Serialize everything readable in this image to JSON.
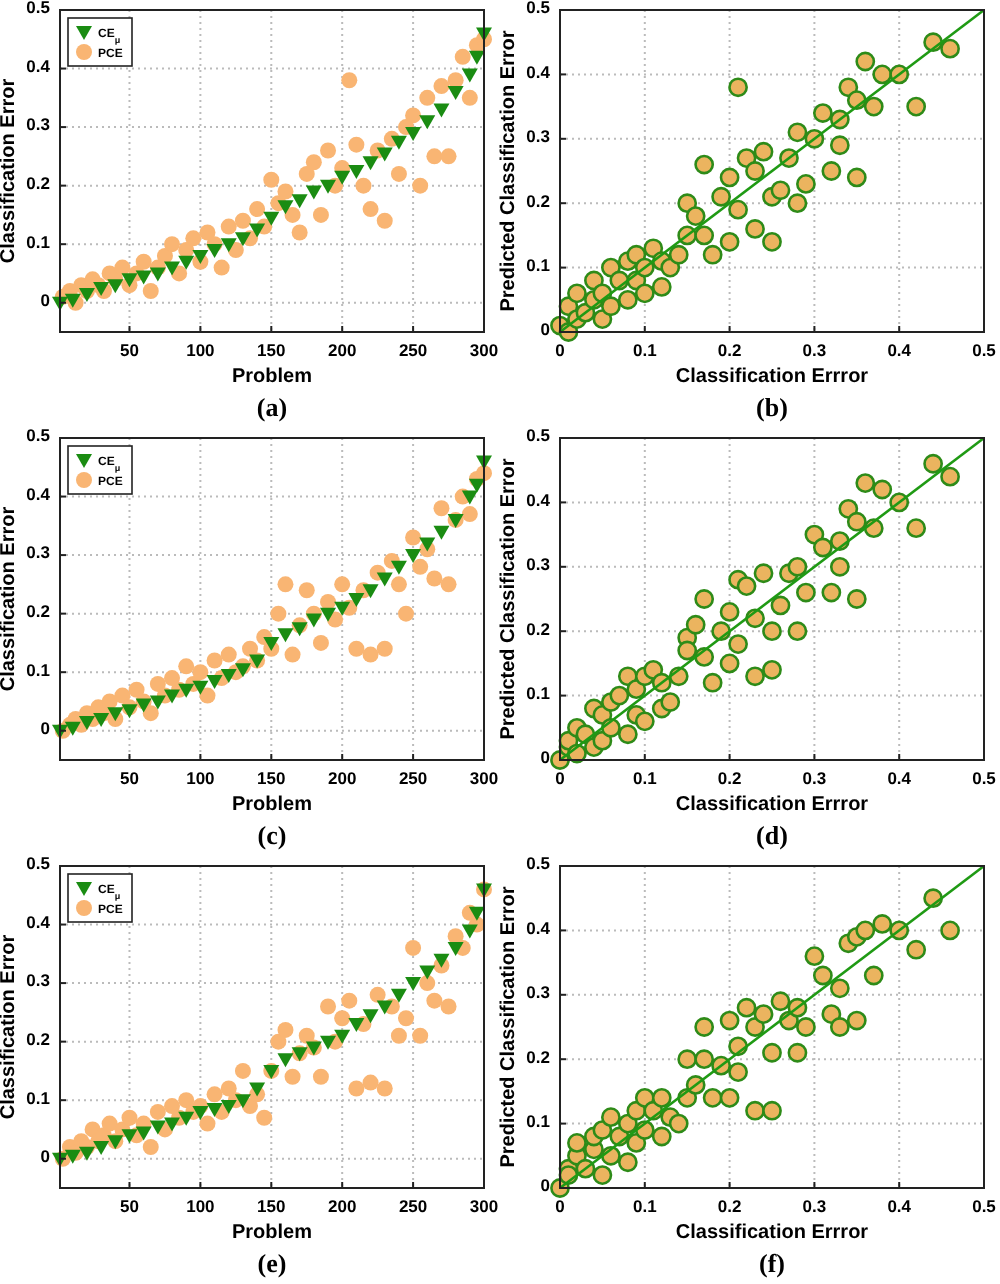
{
  "chart_data": [
    {
      "type": "scatter",
      "xlabel": "Problem",
      "ylabel": "Classification Error",
      "annotations": [
        "(a)"
      ],
      "xlim": [
        1,
        300
      ],
      "ylim": [
        -0.05,
        0.5
      ],
      "xticks": [
        50,
        100,
        150,
        200,
        250,
        300
      ],
      "yticks": [
        0,
        0.1,
        0.2,
        0.3,
        0.4,
        0.5
      ],
      "grid": true,
      "legend": "top left",
      "series": [
        {
          "name": "CE$_{μ}$",
          "color": "#1a8c12",
          "marker": "triangle",
          "x": [
            1,
            10,
            20,
            30,
            40,
            50,
            60,
            70,
            80,
            90,
            100,
            110,
            120,
            130,
            140,
            150,
            160,
            170,
            180,
            190,
            200,
            210,
            220,
            230,
            240,
            250,
            260,
            270,
            280,
            290,
            295,
            300
          ],
          "values": [
            0,
            0.005,
            0.015,
            0.025,
            0.03,
            0.04,
            0.045,
            0.05,
            0.06,
            0.07,
            0.08,
            0.09,
            0.1,
            0.11,
            0.125,
            0.145,
            0.165,
            0.175,
            0.19,
            0.2,
            0.215,
            0.225,
            0.24,
            0.255,
            0.275,
            0.29,
            0.31,
            0.33,
            0.36,
            0.39,
            0.42,
            0.46
          ]
        },
        {
          "name": "PCE",
          "color": "#f9b573",
          "marker": "circle",
          "x": [
            3,
            8,
            12,
            16,
            20,
            24,
            28,
            32,
            36,
            40,
            45,
            50,
            55,
            60,
            65,
            70,
            75,
            80,
            85,
            90,
            95,
            100,
            105,
            110,
            115,
            120,
            125,
            130,
            135,
            140,
            145,
            150,
            155,
            160,
            165,
            170,
            175,
            180,
            185,
            190,
            195,
            200,
            205,
            210,
            215,
            220,
            225,
            230,
            235,
            240,
            245,
            250,
            255,
            260,
            265,
            270,
            275,
            280,
            285,
            290,
            295,
            300
          ],
          "values": [
            0.01,
            0.02,
            0.0,
            0.03,
            0.02,
            0.04,
            0.03,
            0.02,
            0.05,
            0.04,
            0.06,
            0.03,
            0.05,
            0.07,
            0.02,
            0.06,
            0.08,
            0.1,
            0.05,
            0.09,
            0.11,
            0.07,
            0.12,
            0.1,
            0.06,
            0.13,
            0.09,
            0.14,
            0.11,
            0.16,
            0.13,
            0.21,
            0.17,
            0.19,
            0.15,
            0.12,
            0.22,
            0.24,
            0.15,
            0.26,
            0.2,
            0.23,
            0.38,
            0.27,
            0.2,
            0.16,
            0.26,
            0.14,
            0.28,
            0.22,
            0.3,
            0.32,
            0.2,
            0.35,
            0.25,
            0.37,
            0.25,
            0.38,
            0.42,
            0.35,
            0.44,
            0.45
          ]
        }
      ]
    },
    {
      "type": "scatter",
      "xlabel": "Classification Errror",
      "ylabel": "Predicted Classification Error",
      "annotations": [
        "(b)"
      ],
      "xlim": [
        0,
        0.5
      ],
      "ylim": [
        0,
        0.5
      ],
      "xticks": [
        0,
        0.1,
        0.2,
        0.3,
        0.4,
        0.5
      ],
      "yticks": [
        0,
        0.1,
        0.2,
        0.3,
        0.4,
        0.5
      ],
      "grid": true,
      "series": [
        {
          "type": "line",
          "color": "#1f9a14",
          "x": [
            0,
            0.5
          ],
          "values": [
            0,
            0.5
          ]
        },
        {
          "color": "#ebb45f",
          "marker": "circle",
          "x": [
            0.0,
            0.01,
            0.01,
            0.02,
            0.02,
            0.03,
            0.04,
            0.04,
            0.05,
            0.05,
            0.06,
            0.06,
            0.07,
            0.08,
            0.08,
            0.09,
            0.09,
            0.1,
            0.1,
            0.11,
            0.12,
            0.12,
            0.13,
            0.14,
            0.15,
            0.15,
            0.16,
            0.17,
            0.17,
            0.18,
            0.19,
            0.2,
            0.2,
            0.21,
            0.21,
            0.22,
            0.23,
            0.23,
            0.24,
            0.25,
            0.25,
            0.26,
            0.27,
            0.28,
            0.28,
            0.29,
            0.3,
            0.31,
            0.32,
            0.33,
            0.33,
            0.34,
            0.35,
            0.35,
            0.36,
            0.37,
            0.38,
            0.4,
            0.42,
            0.44,
            0.46
          ],
          "values": [
            0.01,
            0.0,
            0.04,
            0.02,
            0.06,
            0.03,
            0.05,
            0.08,
            0.02,
            0.06,
            0.1,
            0.04,
            0.08,
            0.11,
            0.05,
            0.12,
            0.08,
            0.1,
            0.06,
            0.13,
            0.07,
            0.11,
            0.1,
            0.12,
            0.2,
            0.15,
            0.18,
            0.26,
            0.15,
            0.12,
            0.21,
            0.24,
            0.14,
            0.38,
            0.19,
            0.27,
            0.16,
            0.25,
            0.28,
            0.14,
            0.21,
            0.22,
            0.27,
            0.31,
            0.2,
            0.23,
            0.3,
            0.34,
            0.25,
            0.33,
            0.29,
            0.38,
            0.24,
            0.36,
            0.42,
            0.35,
            0.4,
            0.4,
            0.35,
            0.45,
            0.44
          ]
        }
      ]
    },
    {
      "type": "scatter",
      "xlabel": "Problem",
      "ylabel": "Classification Error",
      "annotations": [
        "(c)"
      ],
      "xlim": [
        1,
        300
      ],
      "ylim": [
        -0.05,
        0.5
      ],
      "xticks": [
        50,
        100,
        150,
        200,
        250,
        300
      ],
      "yticks": [
        0,
        0.1,
        0.2,
        0.3,
        0.4,
        0.5
      ],
      "grid": true,
      "legend": "top left",
      "series": [
        {
          "name": "CE$_{μ}$",
          "color": "#1a8c12",
          "marker": "triangle",
          "x": [
            1,
            10,
            20,
            30,
            40,
            50,
            60,
            70,
            80,
            90,
            100,
            110,
            120,
            130,
            140,
            150,
            160,
            170,
            180,
            190,
            200,
            210,
            220,
            230,
            240,
            250,
            260,
            270,
            280,
            290,
            295,
            300
          ],
          "values": [
            0,
            0.005,
            0.015,
            0.02,
            0.03,
            0.035,
            0.045,
            0.05,
            0.06,
            0.07,
            0.075,
            0.085,
            0.095,
            0.105,
            0.12,
            0.15,
            0.165,
            0.175,
            0.19,
            0.2,
            0.21,
            0.225,
            0.24,
            0.26,
            0.28,
            0.3,
            0.32,
            0.34,
            0.36,
            0.4,
            0.42,
            0.46
          ]
        },
        {
          "name": "PCE",
          "color": "#f9b573",
          "marker": "circle",
          "x": [
            3,
            8,
            12,
            16,
            20,
            24,
            28,
            32,
            36,
            40,
            45,
            50,
            55,
            60,
            65,
            70,
            75,
            80,
            85,
            90,
            95,
            100,
            105,
            110,
            115,
            120,
            125,
            130,
            135,
            140,
            145,
            150,
            155,
            160,
            165,
            170,
            175,
            180,
            185,
            190,
            195,
            200,
            205,
            210,
            215,
            220,
            225,
            230,
            235,
            240,
            245,
            250,
            255,
            260,
            265,
            270,
            275,
            280,
            285,
            290,
            295,
            300
          ],
          "values": [
            0.0,
            0.01,
            0.02,
            0.01,
            0.03,
            0.02,
            0.04,
            0.03,
            0.05,
            0.02,
            0.06,
            0.04,
            0.07,
            0.05,
            0.03,
            0.08,
            0.06,
            0.09,
            0.07,
            0.11,
            0.08,
            0.1,
            0.06,
            0.12,
            0.09,
            0.13,
            0.1,
            0.11,
            0.14,
            0.12,
            0.16,
            0.14,
            0.2,
            0.25,
            0.13,
            0.18,
            0.24,
            0.2,
            0.15,
            0.22,
            0.19,
            0.25,
            0.21,
            0.14,
            0.24,
            0.13,
            0.27,
            0.14,
            0.29,
            0.25,
            0.2,
            0.33,
            0.28,
            0.31,
            0.26,
            0.38,
            0.25,
            0.36,
            0.4,
            0.37,
            0.43,
            0.44
          ]
        }
      ]
    },
    {
      "type": "scatter",
      "xlabel": "Classification Errror",
      "ylabel": "Predicted Classification Error",
      "annotations": [
        "(d)"
      ],
      "xlim": [
        0,
        0.5
      ],
      "ylim": [
        0,
        0.5
      ],
      "xticks": [
        0,
        0.1,
        0.2,
        0.3,
        0.4,
        0.5
      ],
      "yticks": [
        0,
        0.1,
        0.2,
        0.3,
        0.4,
        0.5
      ],
      "grid": true,
      "series": [
        {
          "type": "line",
          "color": "#1f9a14",
          "x": [
            0,
            0.5
          ],
          "values": [
            0,
            0.5
          ]
        },
        {
          "color": "#ebb45f",
          "marker": "circle",
          "x": [
            0.0,
            0.01,
            0.01,
            0.02,
            0.02,
            0.03,
            0.04,
            0.04,
            0.05,
            0.05,
            0.06,
            0.06,
            0.07,
            0.08,
            0.08,
            0.09,
            0.09,
            0.1,
            0.1,
            0.11,
            0.12,
            0.12,
            0.13,
            0.14,
            0.15,
            0.15,
            0.16,
            0.17,
            0.17,
            0.18,
            0.19,
            0.2,
            0.2,
            0.21,
            0.21,
            0.22,
            0.23,
            0.23,
            0.24,
            0.25,
            0.25,
            0.26,
            0.27,
            0.28,
            0.28,
            0.29,
            0.3,
            0.31,
            0.32,
            0.33,
            0.33,
            0.34,
            0.35,
            0.35,
            0.36,
            0.37,
            0.38,
            0.4,
            0.42,
            0.44,
            0.46
          ],
          "values": [
            0.0,
            0.02,
            0.03,
            0.01,
            0.05,
            0.04,
            0.02,
            0.08,
            0.03,
            0.07,
            0.09,
            0.05,
            0.1,
            0.13,
            0.04,
            0.11,
            0.07,
            0.13,
            0.06,
            0.14,
            0.08,
            0.12,
            0.09,
            0.13,
            0.19,
            0.17,
            0.21,
            0.25,
            0.16,
            0.12,
            0.2,
            0.23,
            0.15,
            0.28,
            0.18,
            0.27,
            0.13,
            0.22,
            0.29,
            0.14,
            0.2,
            0.24,
            0.29,
            0.3,
            0.2,
            0.26,
            0.35,
            0.33,
            0.26,
            0.34,
            0.3,
            0.39,
            0.25,
            0.37,
            0.43,
            0.36,
            0.42,
            0.4,
            0.36,
            0.46,
            0.44
          ]
        }
      ]
    },
    {
      "type": "scatter",
      "xlabel": "Problem",
      "ylabel": "Classification Error",
      "annotations": [
        "(e)"
      ],
      "xlim": [
        1,
        300
      ],
      "ylim": [
        -0.05,
        0.5
      ],
      "xticks": [
        50,
        100,
        150,
        200,
        250,
        300
      ],
      "yticks": [
        0,
        0.1,
        0.2,
        0.3,
        0.4,
        0.5
      ],
      "grid": true,
      "legend": "top left",
      "series": [
        {
          "name": "CE$_{μ}$",
          "color": "#1a8c12",
          "marker": "triangle",
          "x": [
            1,
            10,
            20,
            30,
            40,
            50,
            60,
            70,
            80,
            90,
            100,
            110,
            120,
            130,
            140,
            150,
            160,
            170,
            180,
            190,
            200,
            210,
            220,
            230,
            240,
            250,
            260,
            270,
            280,
            290,
            295,
            300
          ],
          "values": [
            0,
            0.005,
            0.01,
            0.02,
            0.03,
            0.04,
            0.045,
            0.055,
            0.06,
            0.07,
            0.08,
            0.085,
            0.09,
            0.1,
            0.12,
            0.15,
            0.17,
            0.18,
            0.19,
            0.2,
            0.21,
            0.23,
            0.245,
            0.26,
            0.28,
            0.3,
            0.32,
            0.34,
            0.36,
            0.39,
            0.42,
            0.46
          ]
        },
        {
          "name": "PCE",
          "color": "#f9b573",
          "marker": "circle",
          "x": [
            3,
            8,
            12,
            16,
            20,
            24,
            28,
            32,
            36,
            40,
            45,
            50,
            55,
            60,
            65,
            70,
            75,
            80,
            85,
            90,
            95,
            100,
            105,
            110,
            115,
            120,
            125,
            130,
            135,
            140,
            145,
            150,
            155,
            160,
            165,
            170,
            175,
            180,
            185,
            190,
            195,
            200,
            205,
            210,
            215,
            220,
            225,
            230,
            235,
            240,
            245,
            250,
            255,
            260,
            265,
            270,
            275,
            280,
            285,
            290,
            295,
            300
          ],
          "values": [
            0.0,
            0.02,
            0.01,
            0.03,
            0.02,
            0.05,
            0.03,
            0.04,
            0.06,
            0.03,
            0.05,
            0.07,
            0.04,
            0.06,
            0.02,
            0.08,
            0.05,
            0.09,
            0.07,
            0.1,
            0.08,
            0.09,
            0.06,
            0.11,
            0.08,
            0.12,
            0.1,
            0.15,
            0.09,
            0.11,
            0.07,
            0.15,
            0.2,
            0.22,
            0.14,
            0.18,
            0.21,
            0.19,
            0.14,
            0.26,
            0.2,
            0.24,
            0.27,
            0.12,
            0.23,
            0.13,
            0.28,
            0.12,
            0.26,
            0.21,
            0.24,
            0.36,
            0.21,
            0.3,
            0.27,
            0.33,
            0.26,
            0.38,
            0.36,
            0.42,
            0.4,
            0.46
          ]
        }
      ]
    },
    {
      "type": "scatter",
      "xlabel": "Classification Errror",
      "ylabel": "Predicted Classification Error",
      "annotations": [
        "(f)"
      ],
      "xlim": [
        0,
        0.5
      ],
      "ylim": [
        0,
        0.5
      ],
      "xticks": [
        0,
        0.1,
        0.2,
        0.3,
        0.4,
        0.5
      ],
      "yticks": [
        0,
        0.1,
        0.2,
        0.3,
        0.4,
        0.5
      ],
      "grid": true,
      "series": [
        {
          "type": "line",
          "color": "#1f9a14",
          "x": [
            0,
            0.5
          ],
          "values": [
            0,
            0.5
          ]
        },
        {
          "color": "#ebb45f",
          "marker": "circle",
          "x": [
            0.0,
            0.01,
            0.01,
            0.02,
            0.02,
            0.03,
            0.04,
            0.04,
            0.05,
            0.05,
            0.06,
            0.06,
            0.07,
            0.08,
            0.08,
            0.09,
            0.09,
            0.1,
            0.1,
            0.11,
            0.12,
            0.12,
            0.13,
            0.14,
            0.15,
            0.15,
            0.16,
            0.17,
            0.17,
            0.18,
            0.19,
            0.2,
            0.2,
            0.21,
            0.21,
            0.22,
            0.23,
            0.23,
            0.24,
            0.25,
            0.25,
            0.26,
            0.27,
            0.28,
            0.28,
            0.29,
            0.3,
            0.31,
            0.32,
            0.33,
            0.33,
            0.34,
            0.35,
            0.35,
            0.36,
            0.37,
            0.38,
            0.4,
            0.42,
            0.44,
            0.46
          ],
          "values": [
            0.0,
            0.03,
            0.02,
            0.05,
            0.07,
            0.03,
            0.06,
            0.08,
            0.02,
            0.09,
            0.11,
            0.05,
            0.08,
            0.1,
            0.04,
            0.12,
            0.07,
            0.14,
            0.09,
            0.12,
            0.08,
            0.14,
            0.11,
            0.1,
            0.2,
            0.14,
            0.16,
            0.25,
            0.2,
            0.14,
            0.19,
            0.26,
            0.14,
            0.22,
            0.18,
            0.28,
            0.12,
            0.25,
            0.27,
            0.12,
            0.21,
            0.29,
            0.26,
            0.28,
            0.21,
            0.25,
            0.36,
            0.33,
            0.27,
            0.31,
            0.25,
            0.38,
            0.26,
            0.39,
            0.4,
            0.33,
            0.41,
            0.4,
            0.37,
            0.45,
            0.4
          ]
        }
      ]
    }
  ]
}
